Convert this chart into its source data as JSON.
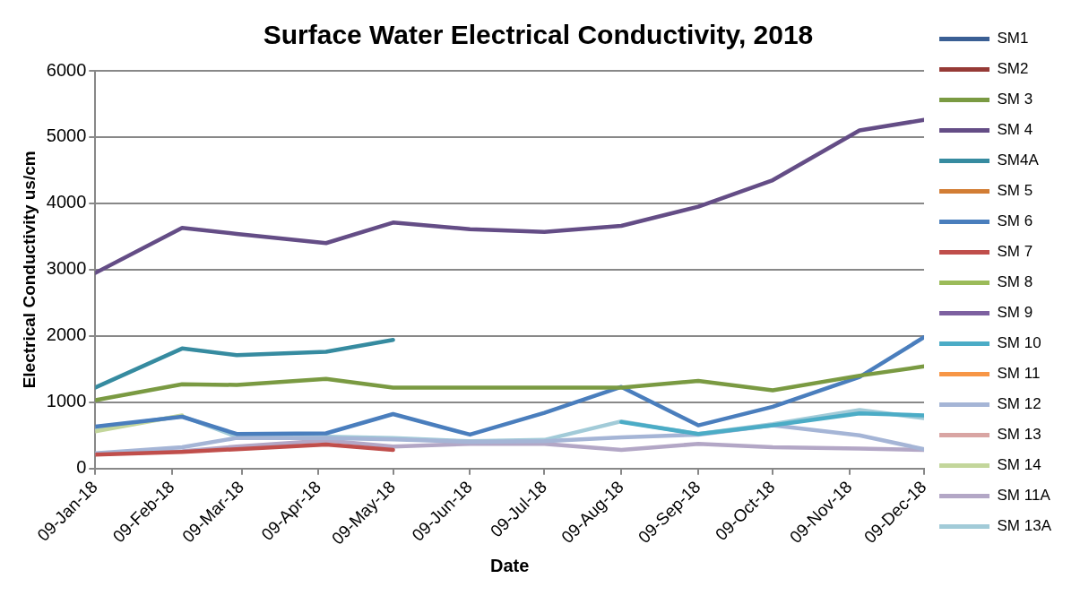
{
  "chart_data": {
    "type": "line",
    "title": "Surface Water Electrical Conductivity, 2018",
    "xlabel": "Date",
    "ylabel": "Electrical Conductivity us/cm",
    "x": [
      "2018-01-09",
      "2018-02-13",
      "2018-03-07",
      "2018-04-12",
      "2018-05-09",
      "2018-06-09",
      "2018-07-09",
      "2018-08-09",
      "2018-09-09",
      "2018-10-09",
      "2018-11-13",
      "2018-12-09"
    ],
    "xlim": [
      "2018-01-09",
      "2018-12-09"
    ],
    "xticks": [
      {
        "value": "2018-01-09",
        "label": "09-Jan-18"
      },
      {
        "value": "2018-02-09",
        "label": "09-Feb-18"
      },
      {
        "value": "2018-03-09",
        "label": "09-Mar-18"
      },
      {
        "value": "2018-04-09",
        "label": "09-Apr-18"
      },
      {
        "value": "2018-05-09",
        "label": "09-May-18"
      },
      {
        "value": "2018-06-09",
        "label": "09-Jun-18"
      },
      {
        "value": "2018-07-09",
        "label": "09-Jul-18"
      },
      {
        "value": "2018-08-09",
        "label": "09-Aug-18"
      },
      {
        "value": "2018-09-09",
        "label": "09-Sep-18"
      },
      {
        "value": "2018-10-09",
        "label": "09-Oct-18"
      },
      {
        "value": "2018-11-09",
        "label": "09-Nov-18"
      },
      {
        "value": "2018-12-09",
        "label": "09-Dec-18"
      }
    ],
    "ylim": [
      0,
      6000
    ],
    "yticks": [
      0,
      1000,
      2000,
      3000,
      4000,
      5000,
      6000
    ],
    "grid": "y",
    "legend": "right",
    "marker": "none",
    "line_style": "solid",
    "series": [
      {
        "name": "SM1",
        "color": "#3a5f94",
        "values": [
          null,
          null,
          null,
          null,
          null,
          null,
          null,
          null,
          null,
          null,
          null,
          null
        ]
      },
      {
        "name": "SM2",
        "color": "#963a36",
        "values": [
          null,
          null,
          null,
          null,
          null,
          null,
          null,
          null,
          null,
          null,
          null,
          null
        ]
      },
      {
        "name": "SM 3",
        "color": "#7a9a42",
        "values": [
          1030,
          1270,
          1260,
          1350,
          1220,
          1220,
          1220,
          1220,
          1320,
          1180,
          1400,
          1540
        ]
      },
      {
        "name": "SM 4",
        "color": "#644d86",
        "values": [
          2950,
          3630,
          3540,
          3400,
          3710,
          3610,
          3570,
          3660,
          3950,
          4350,
          5100,
          5260
        ]
      },
      {
        "name": "SM4A",
        "color": "#368ba0",
        "values": [
          1220,
          1810,
          1710,
          1760,
          1940,
          null,
          null,
          null,
          null,
          null,
          null,
          null
        ]
      },
      {
        "name": "SM 5",
        "color": "#d27d34",
        "values": [
          null,
          null,
          null,
          null,
          null,
          null,
          null,
          null,
          null,
          null,
          null,
          null
        ]
      },
      {
        "name": "SM 6",
        "color": "#4a7ebd",
        "values": [
          630,
          780,
          520,
          530,
          820,
          510,
          840,
          1230,
          650,
          930,
          1380,
          1980
        ]
      },
      {
        "name": "SM 7",
        "color": "#c04e4b",
        "values": [
          210,
          250,
          290,
          360,
          280,
          null,
          null,
          null,
          null,
          null,
          null,
          null
        ]
      },
      {
        "name": "SM 8",
        "color": "#9bbb59",
        "values": [
          null,
          null,
          null,
          null,
          null,
          null,
          null,
          null,
          null,
          null,
          null,
          null
        ]
      },
      {
        "name": "SM 9",
        "color": "#7d60a0",
        "values": [
          null,
          null,
          null,
          null,
          null,
          null,
          null,
          null,
          null,
          null,
          null,
          null
        ]
      },
      {
        "name": "SM 10",
        "color": "#4bacc6",
        "values": [
          null,
          null,
          null,
          null,
          null,
          null,
          null,
          700,
          520,
          650,
          830,
          800
        ]
      },
      {
        "name": "SM 11",
        "color": "#f79646",
        "values": [
          null,
          null,
          null,
          null,
          null,
          null,
          null,
          null,
          null,
          null,
          null,
          null
        ]
      },
      {
        "name": "SM 12",
        "color": "#a5b5d6",
        "values": [
          230,
          320,
          460,
          460,
          440,
          400,
          410,
          470,
          510,
          650,
          500,
          290
        ]
      },
      {
        "name": "SM 13",
        "color": "#d9a5a3",
        "values": [
          null,
          null,
          null,
          null,
          null,
          null,
          null,
          null,
          null,
          null,
          null,
          null
        ]
      },
      {
        "name": "SM 14",
        "color": "#c3d69b",
        "values": [
          560,
          800,
          null,
          null,
          null,
          null,
          null,
          null,
          null,
          null,
          null,
          null
        ]
      },
      {
        "name": "SM 11A",
        "color": "#b3a7c6",
        "values": [
          220,
          260,
          330,
          420,
          330,
          370,
          370,
          280,
          370,
          320,
          300,
          280
        ]
      },
      {
        "name": "SM 13A",
        "color": "#a2cbd8",
        "values": [
          600,
          790,
          480,
          480,
          460,
          410,
          430,
          710,
          520,
          670,
          880,
          760
        ]
      }
    ]
  }
}
